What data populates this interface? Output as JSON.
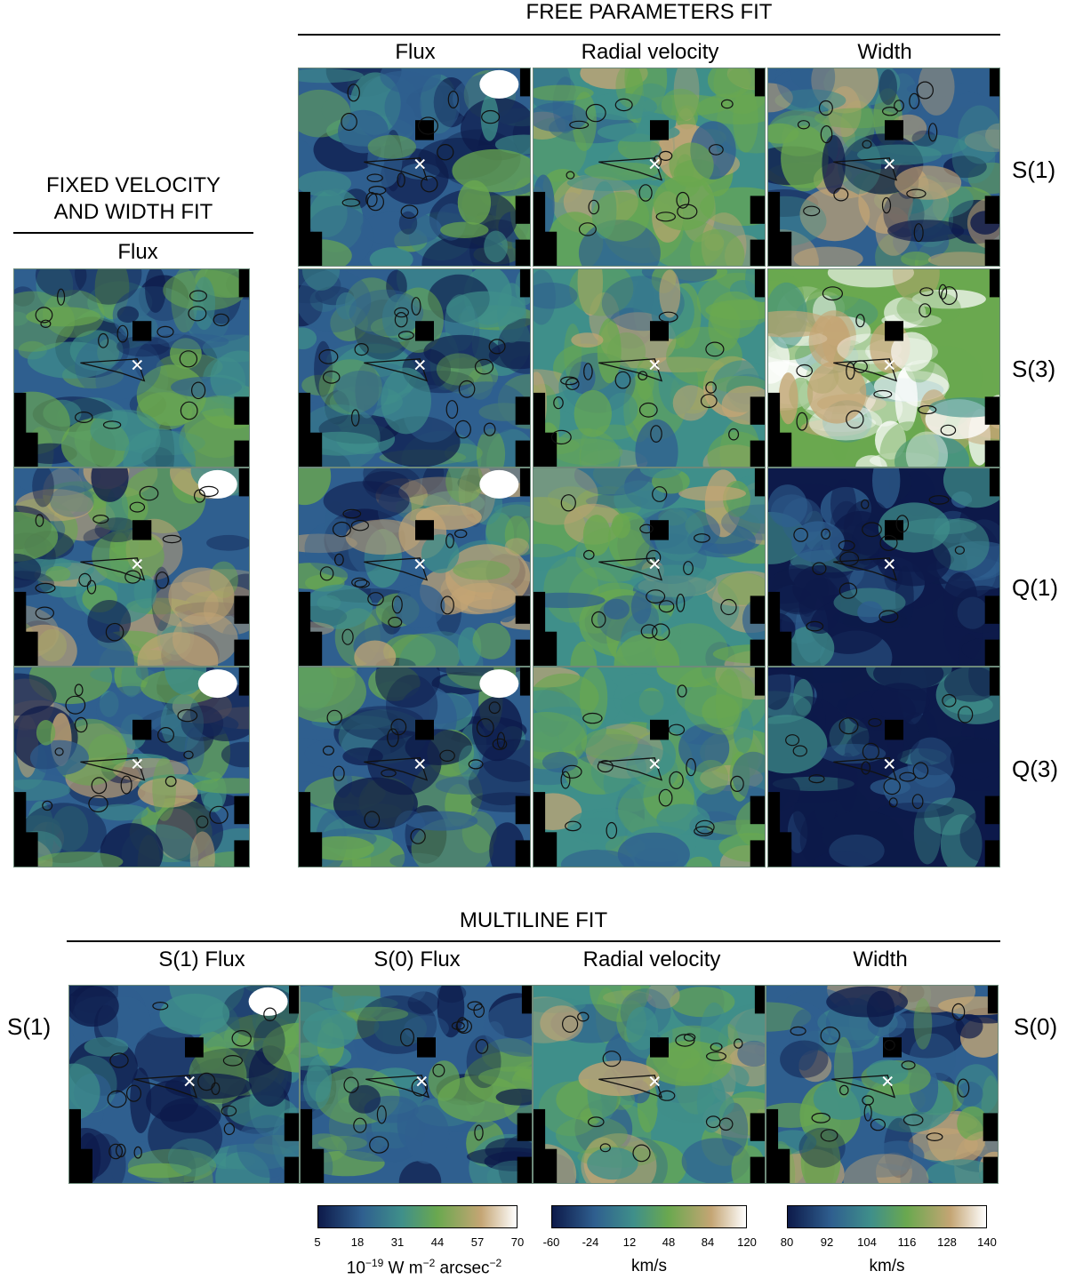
{
  "headings": {
    "free_params": "FREE PARAMETERS FIT",
    "fixed_line1": "FIXED VELOCITY",
    "fixed_line2": "AND WIDTH FIT",
    "multiline": "MULTILINE FIT"
  },
  "columns": {
    "fixed_flux": "Flux",
    "free_flux": "Flux",
    "free_velocity": "Radial velocity",
    "free_width": "Width",
    "multi_s1_flux": "S(1) Flux",
    "multi_s0_flux": "S(0) Flux",
    "multi_velocity": "Radial velocity",
    "multi_width": "Width"
  },
  "rows": {
    "r1": "S(1)",
    "r2": "S(3)",
    "r3": "Q(1)",
    "r4": "Q(3)",
    "multi_left": "S(1)",
    "multi_right": "S(0)"
  },
  "colorbars": {
    "flux": {
      "ticks": [
        "5",
        "18",
        "31",
        "44",
        "57",
        "70"
      ],
      "minor_mark": "''",
      "unit_main": "10",
      "unit_exp": "−19",
      "unit_mid": " W m",
      "unit_exp2": "−2",
      "unit_tail": " arcsec",
      "unit_exp3": "−2"
    },
    "velocity": {
      "ticks": [
        "-60",
        "-24",
        "12",
        "48",
        "84",
        "120"
      ],
      "unit": "km/s"
    },
    "width": {
      "ticks": [
        "80",
        "92",
        "104",
        "116",
        "128",
        "140"
      ],
      "unit": "km/s"
    }
  },
  "colors": {
    "map_dark": "#0d1a4a",
    "map_blue": "#2f5f8f",
    "map_teal": "#3f8f8a",
    "map_green": "#6aa84f",
    "map_tan": "#c4a574",
    "map_white": "#ffffff",
    "rule": "#000000"
  }
}
